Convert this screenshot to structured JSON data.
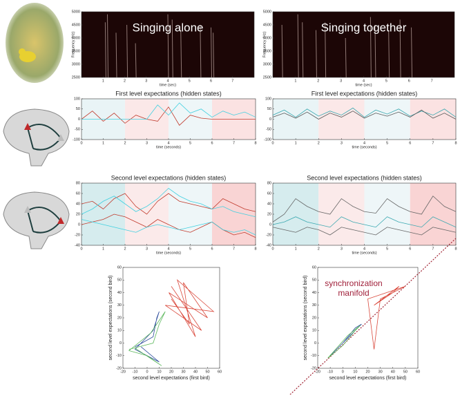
{
  "chart_data": [
    {
      "type": "spectrogram",
      "title": "Singing alone",
      "xlabel": "time (sec)",
      "ylabel": "Frequency (Hz)",
      "color": "#f0d8d0",
      "x": [
        1.1,
        1.2,
        1.6,
        2.1,
        2.5,
        4.0,
        4.2,
        4.6,
        5.5,
        6.0,
        6.1
      ],
      "values": [
        4600,
        4900,
        4200,
        4500,
        3800,
        4900,
        4700,
        4300,
        4500,
        4400,
        4200
      ],
      "xlim": [
        0,
        8
      ],
      "xticks": [
        1,
        2,
        3,
        4,
        5,
        6,
        7
      ],
      "ylim": [
        2500,
        5000
      ],
      "yticks": [
        2500,
        3000,
        3500,
        4000,
        4500,
        5000
      ]
    },
    {
      "type": "spectrogram",
      "title": "Singing together",
      "xlabel": "time (sec)",
      "ylabel": "Frequency (Hz)",
      "color": "#f0d8d0",
      "x": [
        0.4,
        1.1,
        1.3,
        1.9,
        2.3,
        3.2,
        4.3,
        4.5,
        5.1,
        5.6,
        6.1
      ],
      "values": [
        4500,
        4900,
        4600,
        4300,
        4600,
        4000,
        4800,
        4500,
        4300,
        4700,
        4400
      ],
      "xlim": [
        0,
        8
      ],
      "xticks": [
        1,
        2,
        3,
        4,
        5,
        6,
        7
      ],
      "ylim": [
        2500,
        5000
      ],
      "yticks": [
        2500,
        3000,
        3500,
        4000,
        4500,
        5000
      ]
    },
    {
      "type": "line",
      "title": "First level expectations (hidden states)",
      "xlabel": "time (seconds)",
      "bands": [
        {
          "start": 0,
          "end": 2,
          "color": "#e9f4f6"
        },
        {
          "start": 2,
          "end": 4,
          "color": "#fbe8e8"
        },
        {
          "start": 4,
          "end": 6,
          "color": "#eef6f8"
        },
        {
          "start": 6,
          "end": 8,
          "color": "#fbe2e2"
        }
      ],
      "x": [
        0,
        0.5,
        1,
        1.5,
        2,
        2.5,
        3,
        3.5,
        4,
        4.5,
        5,
        5.5,
        6,
        6.5,
        7,
        7.5,
        8
      ],
      "series": [
        {
          "color": "#c0392b",
          "values": [
            0,
            40,
            -10,
            30,
            -20,
            20,
            0,
            -10,
            60,
            -30,
            20,
            5,
            0,
            0,
            0,
            0,
            0
          ]
        },
        {
          "color": "#40d0e0",
          "values": [
            0,
            0,
            0,
            0,
            0,
            0,
            0,
            70,
            20,
            80,
            30,
            50,
            10,
            40,
            20,
            35,
            10
          ]
        }
      ],
      "xlim": [
        0,
        8
      ],
      "xticks": [
        0,
        1,
        2,
        3,
        4,
        5,
        6,
        7,
        8
      ],
      "ylim": [
        -100,
        100
      ],
      "yticks": [
        -100,
        -50,
        0,
        50,
        100
      ]
    },
    {
      "type": "line",
      "title": "First level expectations (hidden states)",
      "xlabel": "time (seconds)",
      "bands": [
        {
          "start": 0,
          "end": 2,
          "color": "#e9f4f6"
        },
        {
          "start": 2,
          "end": 4,
          "color": "#fbe8e8"
        },
        {
          "start": 4,
          "end": 6,
          "color": "#eef6f8"
        },
        {
          "start": 6,
          "end": 8,
          "color": "#fbe2e2"
        }
      ],
      "x": [
        0,
        0.5,
        1,
        1.5,
        2,
        2.5,
        3,
        3.5,
        4,
        4.5,
        5,
        5.5,
        6,
        6.5,
        7,
        7.5,
        8
      ],
      "series": [
        {
          "color": "#3aa8b0",
          "values": [
            20,
            45,
            10,
            50,
            15,
            40,
            20,
            55,
            10,
            45,
            25,
            50,
            15,
            40,
            20,
            50,
            10
          ]
        },
        {
          "color": "#555555",
          "values": [
            10,
            30,
            5,
            35,
            0,
            30,
            10,
            40,
            5,
            30,
            15,
            35,
            10,
            45,
            5,
            30,
            0
          ]
        }
      ],
      "xlim": [
        0,
        8
      ],
      "xticks": [
        0,
        1,
        2,
        3,
        4,
        5,
        6,
        7,
        8
      ],
      "ylim": [
        -100,
        100
      ],
      "yticks": [
        -100,
        -50,
        0,
        50,
        100
      ]
    },
    {
      "type": "line",
      "title": "Second level expectations (hidden states)",
      "xlabel": "time (seconds)",
      "bands": [
        {
          "start": 0,
          "end": 2,
          "color": "#d6ecee"
        },
        {
          "start": 2,
          "end": 4,
          "color": "#fbeaea"
        },
        {
          "start": 4,
          "end": 6,
          "color": "#eef6f8"
        },
        {
          "start": 6,
          "end": 8,
          "color": "#f9d4d4"
        }
      ],
      "x": [
        0,
        0.5,
        1,
        1.5,
        2,
        2.5,
        3,
        3.5,
        4,
        4.5,
        5,
        5.5,
        6,
        6.5,
        7,
        7.5,
        8
      ],
      "series": [
        {
          "color": "#c0392b",
          "values": [
            40,
            45,
            30,
            50,
            60,
            35,
            20,
            45,
            60,
            45,
            40,
            35,
            30,
            50,
            40,
            30,
            25
          ]
        },
        {
          "color": "#c0392b",
          "values": [
            0,
            5,
            10,
            20,
            15,
            5,
            -5,
            10,
            0,
            -10,
            -15,
            -5,
            5,
            -10,
            -20,
            -15,
            -25
          ]
        },
        {
          "color": "#40d0e0",
          "values": [
            20,
            30,
            45,
            55,
            40,
            25,
            35,
            50,
            70,
            55,
            45,
            40,
            30,
            35,
            25,
            20,
            15
          ]
        },
        {
          "color": "#40d0e0",
          "values": [
            10,
            5,
            0,
            -5,
            -10,
            -15,
            -5,
            0,
            -5,
            -10,
            -5,
            0,
            5,
            -10,
            -15,
            -10,
            -20
          ]
        }
      ],
      "xlim": [
        0,
        8
      ],
      "xticks": [
        0,
        1,
        2,
        3,
        4,
        5,
        6,
        7,
        8
      ],
      "ylim": [
        -40,
        80
      ],
      "yticks": [
        -40,
        -20,
        0,
        20,
        40,
        60,
        80
      ]
    },
    {
      "type": "line",
      "title": "Second level expectations (hidden states)",
      "xlabel": "time (seconds)",
      "bands": [
        {
          "start": 0,
          "end": 2,
          "color": "#d6ecee"
        },
        {
          "start": 2,
          "end": 4,
          "color": "#fbeaea"
        },
        {
          "start": 4,
          "end": 6,
          "color": "#eef6f8"
        },
        {
          "start": 6,
          "end": 8,
          "color": "#f9d4d4"
        }
      ],
      "x": [
        0,
        0.5,
        1,
        1.5,
        2,
        2.5,
        3,
        3.5,
        4,
        4.5,
        5,
        5.5,
        6,
        6.5,
        7,
        7.5,
        8
      ],
      "series": [
        {
          "color": "#666666",
          "values": [
            5,
            20,
            50,
            35,
            25,
            20,
            50,
            35,
            25,
            22,
            50,
            35,
            25,
            20,
            55,
            35,
            25
          ]
        },
        {
          "color": "#3aa8b0",
          "values": [
            0,
            5,
            15,
            5,
            0,
            -5,
            15,
            5,
            0,
            -5,
            15,
            5,
            0,
            -5,
            15,
            5,
            -5
          ]
        },
        {
          "color": "#666666",
          "values": [
            -5,
            -10,
            -15,
            -5,
            -10,
            -20,
            -5,
            -10,
            -15,
            -20,
            -5,
            -10,
            -15,
            -20,
            -5,
            -10,
            -15
          ]
        }
      ],
      "xlim": [
        0,
        8
      ],
      "xticks": [
        0,
        1,
        2,
        3,
        4,
        5,
        6,
        7,
        8
      ],
      "ylim": [
        -40,
        80
      ],
      "yticks": [
        -40,
        -20,
        0,
        20,
        40,
        60,
        80
      ]
    },
    {
      "type": "phase",
      "xlabel": "second level expectations (first bird)",
      "ylabel": "second level expectations (second bird)",
      "series": [
        {
          "color": "#d9473a",
          "x": [
            20,
            45,
            15,
            55,
            25,
            40,
            18,
            50,
            30,
            35,
            20
          ],
          "y": [
            45,
            10,
            30,
            25,
            50,
            5,
            40,
            20,
            48,
            15,
            35
          ]
        },
        {
          "color": "#2a4a9a",
          "x": [
            -10,
            5,
            8,
            10,
            5,
            -10,
            0,
            10,
            -5
          ],
          "y": [
            -3,
            5,
            20,
            25,
            10,
            -5,
            -10,
            -15,
            -3
          ]
        },
        {
          "color": "#5cb85c",
          "x": [
            -15,
            5,
            10,
            15,
            3,
            -15,
            0,
            12,
            -10
          ],
          "y": [
            -5,
            0,
            15,
            25,
            8,
            -6,
            -10,
            -18,
            -4
          ]
        }
      ],
      "xlim": [
        -20,
        60
      ],
      "xticks": [
        -20,
        -10,
        0,
        10,
        20,
        30,
        40,
        50,
        60
      ],
      "ylim": [
        -20,
        60
      ],
      "yticks": [
        -20,
        -10,
        0,
        10,
        20,
        30,
        40,
        50,
        60
      ]
    },
    {
      "type": "phase",
      "xlabel": "second level expectations (first bird)",
      "ylabel": "second level expectations (second bird)",
      "annotation": [
        "synchronization",
        "manifold"
      ],
      "diagonal": true,
      "series": [
        {
          "color": "#d9473a",
          "x": [
            25,
            45,
            40,
            30,
            25,
            20,
            35,
            50,
            40,
            25
          ],
          "y": [
            30,
            45,
            40,
            35,
            -5,
            35,
            40,
            45,
            40,
            30
          ]
        },
        {
          "color": "#2a4a9a",
          "x": [
            -10,
            0,
            10,
            15,
            5,
            -10
          ],
          "y": [
            -10,
            0,
            12,
            15,
            5,
            -10
          ]
        },
        {
          "color": "#5cb85c",
          "x": [
            -12,
            0,
            10,
            14,
            4,
            -12
          ],
          "y": [
            -12,
            -2,
            10,
            14,
            6,
            -12
          ]
        }
      ],
      "xlim": [
        -20,
        60
      ],
      "xticks": [
        -20,
        -10,
        0,
        10,
        20,
        30,
        40,
        50,
        60
      ],
      "ylim": [
        -20,
        60
      ],
      "yticks": [
        -20,
        -10,
        0,
        10,
        20,
        30,
        40,
        50,
        60
      ]
    }
  ]
}
